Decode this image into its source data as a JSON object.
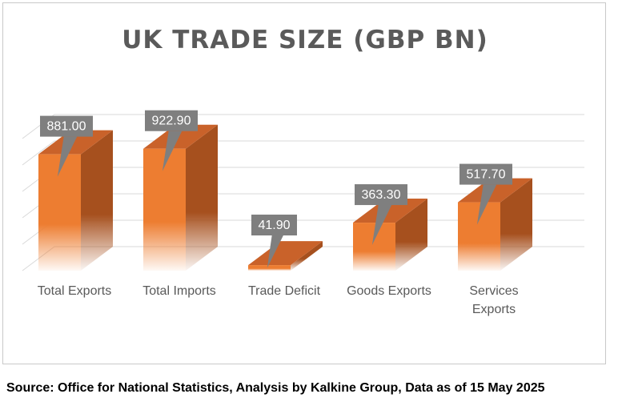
{
  "title": "UK TRADE SIZE (GBP BN)",
  "source": "Source: Office for National Statistics, Analysis by Kalkine Group, Data as of 15 May 2025",
  "colors": {
    "bar_front": "#ed7d31",
    "bar_side": "#a6501e",
    "bar_top": "#c9622a",
    "label_box": "#7f7f7f",
    "label_text": "#ffffff",
    "category_text": "#595959",
    "gridline": "#d9d9d9"
  },
  "chart_data": {
    "type": "bar",
    "categories": [
      "Total Exports",
      "Total Imports",
      "Trade Deficit",
      "Goods Exports",
      "Services Exports"
    ],
    "values": [
      881.0,
      922.9,
      41.9,
      363.3,
      517.7
    ],
    "data_labels": [
      "881.00",
      "922.90",
      "41.90",
      "363.30",
      "517.70"
    ],
    "title": "UK TRADE SIZE (GBP BN)",
    "xlabel": "",
    "ylabel": "",
    "ylim": [
      0,
      1000
    ],
    "grid": true,
    "legend": "none"
  }
}
